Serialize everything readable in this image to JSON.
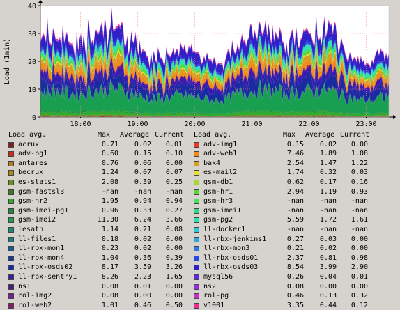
{
  "chart_data": {
    "type": "area",
    "ylabel": "Load (1min)",
    "ylim": [
      0,
      40
    ],
    "yticks": [
      "0",
      "10",
      "20",
      "30",
      "40"
    ],
    "xticks": [
      "18:00",
      "19:00",
      "20:00",
      "21:00",
      "22:00",
      "23:00"
    ],
    "grid": true,
    "stacked": true,
    "approx_total_range": [
      18,
      36
    ],
    "legend_header": [
      "Load avg.",
      "Max",
      "Average",
      "Current"
    ],
    "series": [
      {
        "name": "acrux",
        "color": "#8b1a1a",
        "max": "0.71",
        "avg": "0.02",
        "cur": "0.01"
      },
      {
        "name": "adv-pg1",
        "color": "#d12a1a",
        "max": "0.60",
        "avg": "0.15",
        "cur": "0.10"
      },
      {
        "name": "antares",
        "color": "#b87a1a",
        "max": "0.76",
        "avg": "0.06",
        "cur": "0.00"
      },
      {
        "name": "becrux",
        "color": "#a88c1a",
        "max": "1.24",
        "avg": "0.07",
        "cur": "0.07"
      },
      {
        "name": "es-stats1",
        "color": "#6b8e23",
        "max": "2.08",
        "avg": "0.39",
        "cur": "0.25"
      },
      {
        "name": "gsm-fastsl3",
        "color": "#3c7a1a",
        "max": "-nan",
        "avg": "-nan",
        "cur": "-nan"
      },
      {
        "name": "gsm-hr2",
        "color": "#2eaa2e",
        "max": "1.95",
        "avg": "0.94",
        "cur": "0.94"
      },
      {
        "name": "gsm-imei-pg1",
        "color": "#1e8c3c",
        "max": "0.96",
        "avg": "0.33",
        "cur": "0.27"
      },
      {
        "name": "gsm-imei2",
        "color": "#18a050",
        "max": "11.30",
        "avg": "6.24",
        "cur": "3.66"
      },
      {
        "name": "lesath",
        "color": "#1a8a7a",
        "max": "1.14",
        "avg": "0.21",
        "cur": "0.08"
      },
      {
        "name": "ll-files1",
        "color": "#1a7a8c",
        "max": "0.18",
        "avg": "0.02",
        "cur": "0.00"
      },
      {
        "name": "ll-rbx-mon1",
        "color": "#1a5a8c",
        "max": "0.23",
        "avg": "0.02",
        "cur": "0.00"
      },
      {
        "name": "ll-rbx-mon4",
        "color": "#1a3a8c",
        "max": "1.04",
        "avg": "0.36",
        "cur": "0.39"
      },
      {
        "name": "ll-rbx-osds02",
        "color": "#1a2aa0",
        "max": "8.17",
        "avg": "3.59",
        "cur": "3.26"
      },
      {
        "name": "ll-rbx-sentry1",
        "color": "#3a1ab0",
        "max": "8.26",
        "avg": "2.23",
        "cur": "1.65"
      },
      {
        "name": "ns1",
        "color": "#4a1a8c",
        "max": "0.08",
        "avg": "0.01",
        "cur": "0.00"
      },
      {
        "name": "rol-img2",
        "color": "#7a1a9c",
        "max": "0.08",
        "avg": "0.00",
        "cur": "0.00"
      },
      {
        "name": "rol-web2",
        "color": "#8c1a6a",
        "max": "1.01",
        "avg": "0.46",
        "cur": "0.50"
      },
      {
        "name": "adv-img1",
        "color": "#e83a2a",
        "max": "0.15",
        "avg": "0.02",
        "cur": "0.00"
      },
      {
        "name": "adv-web1",
        "color": "#f08a1a",
        "max": "7.46",
        "avg": "1.89",
        "cur": "1.08"
      },
      {
        "name": "bak4",
        "color": "#d8a020",
        "max": "2.54",
        "avg": "1.47",
        "cur": "1.22"
      },
      {
        "name": "es-mail2",
        "color": "#e8e030",
        "max": "1.74",
        "avg": "0.32",
        "cur": "0.03"
      },
      {
        "name": "gsm-db1",
        "color": "#a8d830",
        "max": "0.62",
        "avg": "0.17",
        "cur": "0.16"
      },
      {
        "name": "gsm-hr1",
        "color": "#58d838",
        "max": "2.94",
        "avg": "1.19",
        "cur": "0.93"
      },
      {
        "name": "gsm-hr3",
        "color": "#48e060",
        "max": "-nan",
        "avg": "-nan",
        "cur": "-nan"
      },
      {
        "name": "gsm-imei1",
        "color": "#30d888",
        "max": "-nan",
        "avg": "-nan",
        "cur": "-nan"
      },
      {
        "name": "gsm-pg2",
        "color": "#30e0b0",
        "max": "5.59",
        "avg": "1.72",
        "cur": "1.61"
      },
      {
        "name": "ll-docker1",
        "color": "#30c8d8",
        "max": "-nan",
        "avg": "-nan",
        "cur": "-nan"
      },
      {
        "name": "ll-rbx-jenkins1",
        "color": "#30a8d8",
        "max": "0.27",
        "avg": "0.03",
        "cur": "0.00"
      },
      {
        "name": "ll-rbx-mon3",
        "color": "#3078e0",
        "max": "0.21",
        "avg": "0.02",
        "cur": "0.00"
      },
      {
        "name": "ll-rbx-osds01",
        "color": "#2848e0",
        "max": "2.37",
        "avg": "0.81",
        "cur": "0.98"
      },
      {
        "name": "ll-rbx-osds03",
        "color": "#3020c8",
        "max": "8.54",
        "avg": "3.99",
        "cur": "2.90"
      },
      {
        "name": "mysql56",
        "color": "#6028e0",
        "max": "0.26",
        "avg": "0.04",
        "cur": "0.01"
      },
      {
        "name": "ns2",
        "color": "#9830d8",
        "max": "0.08",
        "avg": "0.00",
        "cur": "0.00"
      },
      {
        "name": "rol-pg1",
        "color": "#c830c8",
        "max": "0.46",
        "avg": "0.13",
        "cur": "0.32"
      },
      {
        "name": "v1001",
        "color": "#e83090",
        "max": "3.35",
        "avg": "0.44",
        "cur": "0.12"
      }
    ]
  }
}
